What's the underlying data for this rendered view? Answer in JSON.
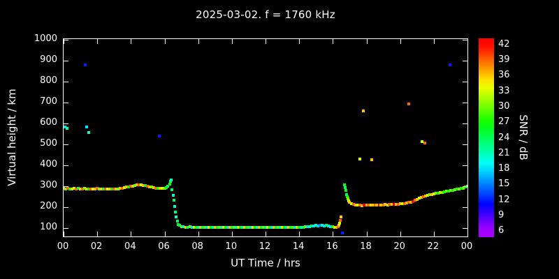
{
  "title": "2025-03-02. f = 1760 kHz",
  "axes": {
    "x_label": "UT Time / hrs",
    "y_label": "Virtual height / km",
    "x_tick_values": [
      0,
      2,
      4,
      6,
      8,
      10,
      12,
      14,
      16,
      18,
      20,
      22,
      24
    ],
    "x_tick_labels": [
      "00",
      "02",
      "04",
      "06",
      "08",
      "10",
      "12",
      "14",
      "16",
      "18",
      "20",
      "22",
      "00"
    ],
    "y_tick_values": [
      100,
      200,
      300,
      400,
      500,
      600,
      700,
      800,
      900,
      1000
    ]
  },
  "colorbar": {
    "label": "SNR / dB",
    "tick_values": [
      42,
      39,
      36,
      33,
      30,
      27,
      24,
      21,
      18,
      15,
      12,
      9,
      6
    ]
  },
  "chart_data": {
    "type": "scatter",
    "title": "2025-03-02. f = 1760 kHz",
    "xlabel": "UT Time / hrs",
    "ylabel": "Virtual height / km",
    "xlim": [
      0,
      24
    ],
    "ylim": [
      60,
      1005
    ],
    "color_label": "SNR / dB",
    "color_range": [
      6,
      42
    ],
    "grid": false,
    "points_format": "[ut_hours, virtual_height_km, snr_db]",
    "points": [
      [
        0.0,
        290,
        36
      ],
      [
        0.12,
        288,
        30
      ],
      [
        0.25,
        289,
        39
      ],
      [
        0.37,
        287,
        27
      ],
      [
        0.5,
        288,
        36
      ],
      [
        0.62,
        290,
        33
      ],
      [
        0.75,
        287,
        39
      ],
      [
        0.87,
        289,
        24
      ],
      [
        1.0,
        288,
        36
      ],
      [
        1.12,
        287,
        39
      ],
      [
        1.25,
        289,
        30
      ],
      [
        1.37,
        288,
        36
      ],
      [
        1.5,
        286,
        27
      ],
      [
        1.62,
        288,
        39
      ],
      [
        1.75,
        287,
        33
      ],
      [
        1.87,
        288,
        36
      ],
      [
        2.0,
        289,
        39
      ],
      [
        2.12,
        287,
        30
      ],
      [
        2.25,
        286,
        36
      ],
      [
        2.37,
        288,
        24
      ],
      [
        2.5,
        287,
        39
      ],
      [
        2.62,
        286,
        33
      ],
      [
        2.75,
        288,
        36
      ],
      [
        2.87,
        287,
        27
      ],
      [
        3.0,
        286,
        39
      ],
      [
        3.12,
        287,
        36
      ],
      [
        3.25,
        288,
        30
      ],
      [
        3.37,
        290,
        36
      ],
      [
        3.5,
        292,
        39
      ],
      [
        3.62,
        294,
        33
      ],
      [
        3.75,
        296,
        36
      ],
      [
        3.87,
        298,
        27
      ],
      [
        4.0,
        300,
        39
      ],
      [
        4.12,
        302,
        36
      ],
      [
        4.25,
        305,
        30
      ],
      [
        4.37,
        307,
        36
      ],
      [
        4.5,
        308,
        39
      ],
      [
        4.62,
        307,
        33
      ],
      [
        4.75,
        305,
        36
      ],
      [
        4.87,
        303,
        24
      ],
      [
        5.0,
        300,
        39
      ],
      [
        5.12,
        298,
        36
      ],
      [
        5.25,
        296,
        30
      ],
      [
        5.37,
        294,
        36
      ],
      [
        5.5,
        292,
        39
      ],
      [
        5.62,
        291,
        27
      ],
      [
        5.75,
        290,
        36
      ],
      [
        5.87,
        289,
        33
      ],
      [
        6.0,
        290,
        30
      ],
      [
        6.1,
        294,
        27
      ],
      [
        6.2,
        300,
        24
      ],
      [
        6.3,
        312,
        27
      ],
      [
        6.35,
        325,
        24
      ],
      [
        6.4,
        332,
        21
      ],
      [
        6.45,
        285,
        24
      ],
      [
        6.5,
        258,
        21
      ],
      [
        6.55,
        232,
        24
      ],
      [
        6.6,
        205,
        21
      ],
      [
        6.65,
        178,
        24
      ],
      [
        6.7,
        152,
        21
      ],
      [
        6.75,
        132,
        24
      ],
      [
        6.8,
        118,
        27
      ],
      [
        6.9,
        112,
        24
      ],
      [
        7.0,
        108,
        30
      ],
      [
        7.12,
        106,
        21
      ],
      [
        7.25,
        105,
        36
      ],
      [
        7.37,
        104,
        24
      ],
      [
        7.5,
        106,
        30
      ],
      [
        7.62,
        105,
        18
      ],
      [
        7.75,
        104,
        33
      ],
      [
        7.87,
        103,
        27
      ],
      [
        8.0,
        105,
        21
      ],
      [
        8.12,
        104,
        36
      ],
      [
        8.25,
        103,
        24
      ],
      [
        8.37,
        105,
        30
      ],
      [
        8.5,
        104,
        18
      ],
      [
        8.62,
        103,
        33
      ],
      [
        8.75,
        105,
        27
      ],
      [
        8.87,
        104,
        21
      ],
      [
        9.0,
        103,
        36
      ],
      [
        9.12,
        105,
        24
      ],
      [
        9.25,
        104,
        30
      ],
      [
        9.37,
        103,
        21
      ],
      [
        9.5,
        105,
        33
      ],
      [
        9.62,
        104,
        27
      ],
      [
        9.75,
        103,
        18
      ],
      [
        9.87,
        104,
        36
      ],
      [
        10.0,
        103,
        24
      ],
      [
        10.12,
        105,
        30
      ],
      [
        10.25,
        104,
        21
      ],
      [
        10.37,
        103,
        33
      ],
      [
        10.5,
        104,
        27
      ],
      [
        10.62,
        103,
        21
      ],
      [
        10.75,
        104,
        36
      ],
      [
        10.87,
        103,
        24
      ],
      [
        11.0,
        102,
        30
      ],
      [
        11.12,
        104,
        18
      ],
      [
        11.25,
        103,
        33
      ],
      [
        11.37,
        102,
        27
      ],
      [
        11.5,
        103,
        21
      ],
      [
        11.62,
        104,
        36
      ],
      [
        11.75,
        103,
        24
      ],
      [
        11.87,
        102,
        30
      ],
      [
        12.0,
        103,
        21
      ],
      [
        12.12,
        102,
        33
      ],
      [
        12.25,
        103,
        27
      ],
      [
        12.37,
        102,
        18
      ],
      [
        12.5,
        103,
        36
      ],
      [
        12.62,
        104,
        24
      ],
      [
        12.75,
        103,
        30
      ],
      [
        12.87,
        102,
        21
      ],
      [
        13.0,
        103,
        33
      ],
      [
        13.12,
        102,
        27
      ],
      [
        13.25,
        103,
        21
      ],
      [
        13.37,
        104,
        36
      ],
      [
        13.5,
        103,
        24
      ],
      [
        13.62,
        102,
        30
      ],
      [
        13.75,
        103,
        18
      ],
      [
        13.87,
        104,
        33
      ],
      [
        14.0,
        103,
        27
      ],
      [
        14.12,
        104,
        21
      ],
      [
        14.25,
        105,
        24
      ],
      [
        14.37,
        106,
        30
      ],
      [
        14.5,
        108,
        18
      ],
      [
        14.62,
        107,
        21
      ],
      [
        14.75,
        109,
        24
      ],
      [
        14.87,
        110,
        18
      ],
      [
        15.0,
        112,
        21
      ],
      [
        15.12,
        110,
        18
      ],
      [
        15.25,
        112,
        15
      ],
      [
        15.37,
        113,
        21
      ],
      [
        15.5,
        111,
        18
      ],
      [
        15.62,
        112,
        24
      ],
      [
        15.75,
        110,
        21
      ],
      [
        15.87,
        108,
        18
      ],
      [
        16.0,
        106,
        27
      ],
      [
        16.1,
        104,
        33
      ],
      [
        16.2,
        103,
        36
      ],
      [
        16.3,
        106,
        39
      ],
      [
        16.35,
        112,
        36
      ],
      [
        16.4,
        122,
        33
      ],
      [
        16.45,
        138,
        39
      ],
      [
        16.5,
        152,
        36
      ],
      [
        16.55,
        76,
        12
      ],
      [
        16.7,
        308,
        27
      ],
      [
        16.73,
        295,
        24
      ],
      [
        16.76,
        280,
        27
      ],
      [
        16.8,
        262,
        24
      ],
      [
        16.84,
        250,
        27
      ],
      [
        16.88,
        240,
        30
      ],
      [
        16.95,
        230,
        33
      ],
      [
        17.0,
        222,
        36
      ],
      [
        17.12,
        216,
        33
      ],
      [
        17.25,
        212,
        39
      ],
      [
        17.37,
        210,
        36
      ],
      [
        17.5,
        209,
        33
      ],
      [
        17.62,
        210,
        39
      ],
      [
        17.75,
        208,
        36
      ],
      [
        17.87,
        209,
        42
      ],
      [
        18.0,
        210,
        36
      ],
      [
        18.12,
        209,
        39
      ],
      [
        18.25,
        210,
        33
      ],
      [
        18.37,
        211,
        36
      ],
      [
        18.5,
        210,
        39
      ],
      [
        18.62,
        209,
        36
      ],
      [
        18.75,
        210,
        42
      ],
      [
        18.87,
        211,
        36
      ],
      [
        19.0,
        210,
        39
      ],
      [
        19.12,
        212,
        36
      ],
      [
        19.25,
        211,
        33
      ],
      [
        19.37,
        212,
        39
      ],
      [
        19.5,
        213,
        36
      ],
      [
        19.62,
        212,
        42
      ],
      [
        19.75,
        214,
        36
      ],
      [
        19.87,
        215,
        39
      ],
      [
        20.0,
        216,
        36
      ],
      [
        20.12,
        217,
        33
      ],
      [
        20.25,
        218,
        39
      ],
      [
        20.37,
        220,
        36
      ],
      [
        20.5,
        222,
        39
      ],
      [
        20.62,
        224,
        36
      ],
      [
        20.75,
        228,
        42
      ],
      [
        20.87,
        232,
        39
      ],
      [
        21.0,
        238,
        36
      ],
      [
        21.12,
        242,
        33
      ],
      [
        21.25,
        248,
        36
      ],
      [
        21.37,
        252,
        39
      ],
      [
        21.5,
        255,
        36
      ],
      [
        21.62,
        258,
        33
      ],
      [
        21.75,
        260,
        30
      ],
      [
        21.87,
        262,
        36
      ],
      [
        22.0,
        264,
        33
      ],
      [
        22.12,
        266,
        30
      ],
      [
        22.25,
        268,
        27
      ],
      [
        22.37,
        270,
        33
      ],
      [
        22.5,
        272,
        30
      ],
      [
        22.62,
        274,
        27
      ],
      [
        22.75,
        276,
        30
      ],
      [
        22.87,
        278,
        27
      ],
      [
        23.0,
        280,
        30
      ],
      [
        23.12,
        282,
        27
      ],
      [
        23.25,
        284,
        30
      ],
      [
        23.37,
        286,
        27
      ],
      [
        23.5,
        288,
        30
      ],
      [
        23.62,
        290,
        27
      ],
      [
        23.75,
        292,
        30
      ],
      [
        23.87,
        296,
        27
      ],
      [
        24.0,
        300,
        30
      ],
      [
        0.1,
        585,
        18
      ],
      [
        0.22,
        576,
        21
      ],
      [
        1.3,
        882,
        12
      ],
      [
        1.35,
        585,
        18
      ],
      [
        1.5,
        558,
        21
      ],
      [
        5.7,
        540,
        12
      ],
      [
        17.8,
        660,
        36
      ],
      [
        17.6,
        432,
        33
      ],
      [
        18.3,
        428,
        36
      ],
      [
        20.5,
        695,
        39
      ],
      [
        21.3,
        515,
        33
      ],
      [
        21.45,
        508,
        39
      ],
      [
        22.95,
        880,
        12
      ]
    ]
  }
}
